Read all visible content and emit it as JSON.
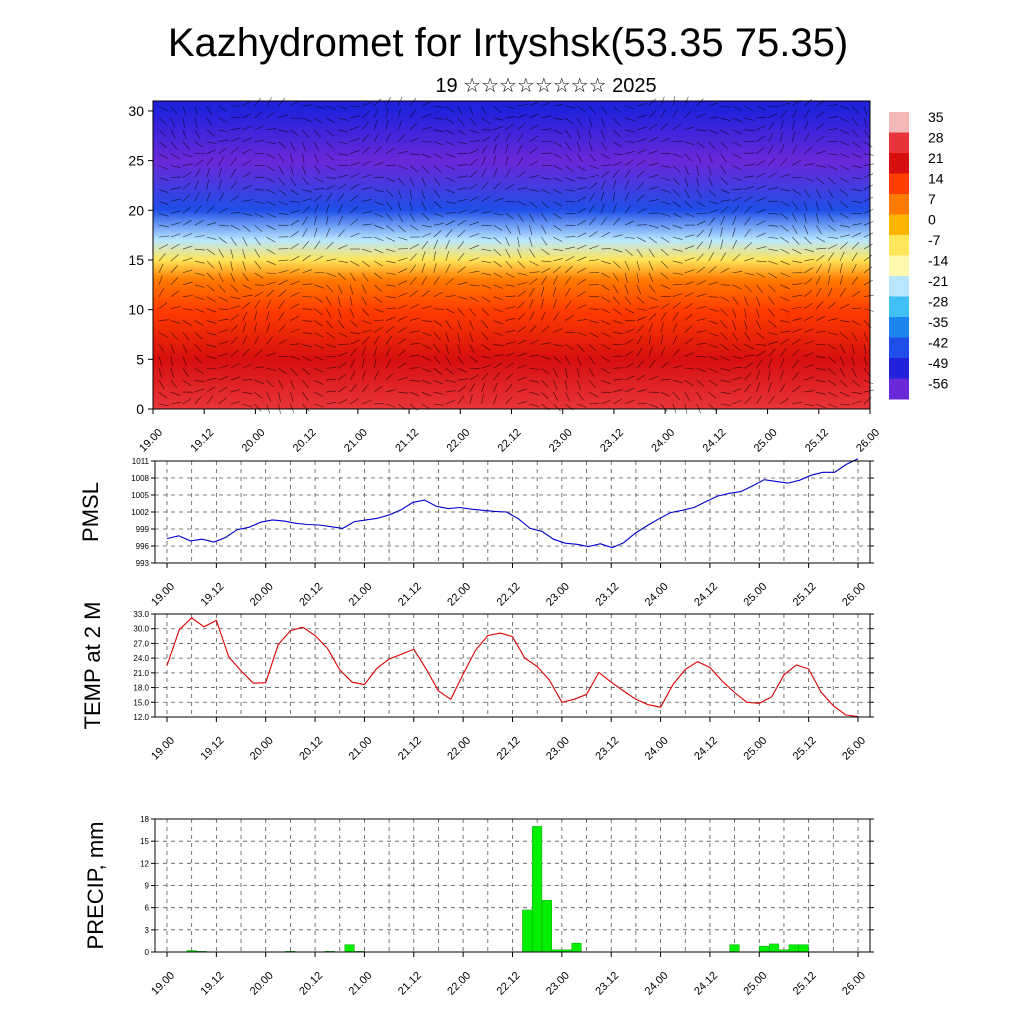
{
  "title": "Kazhydromet for Irtyshsk(53.35 75.35)",
  "subtitle": "19 ☆☆☆☆☆☆☆☆ 2025",
  "time_labels": [
    "19.00",
    "19.12",
    "20.00",
    "20.12",
    "21.00",
    "21.12",
    "22.00",
    "22.12",
    "23.00",
    "23.12",
    "24.00",
    "24.12",
    "25.00",
    "25.12",
    "26.00"
  ],
  "chart_data": [
    {
      "type": "heatmap",
      "ylim": [
        0,
        31
      ],
      "y_ticks": [
        0,
        5,
        10,
        15,
        20,
        25,
        30
      ],
      "colorbar_labels": [
        "35",
        "28",
        "21",
        "14",
        "7",
        "0",
        "-7",
        "-14",
        "-21",
        "-28",
        "-35",
        "-42",
        "-49",
        "-56"
      ],
      "colorbar_colors": [
        "#f3b7b7",
        "#e8343a",
        "#d70f0f",
        "#ff3d00",
        "#ff7a00",
        "#ffb400",
        "#ffe55a",
        "#fff9b0",
        "#b8e6ff",
        "#3fc0f5",
        "#1c86ee",
        "#1f4fe8",
        "#2222dd",
        "#6a28d8"
      ],
      "vertical_profile_temperature": [
        {
          "level": 0,
          "value": 28
        },
        {
          "level": 5,
          "value": 23
        },
        {
          "level": 10,
          "value": 14
        },
        {
          "level": 13,
          "value": 5
        },
        {
          "level": 15,
          "value": -10
        },
        {
          "level": 17,
          "value": -22
        },
        {
          "level": 20,
          "value": -40
        },
        {
          "level": 25,
          "value": -55
        },
        {
          "level": 30,
          "value": -52
        }
      ]
    },
    {
      "type": "line",
      "ylabel": "PMSL",
      "ylim": [
        993,
        1011
      ],
      "y_ticks": [
        "1011",
        "1008",
        "1005",
        "1002",
        "999",
        "996",
        "993"
      ],
      "color": "#0000cc",
      "values": [
        997.3,
        997.8,
        996.9,
        997.2,
        996.7,
        997.5,
        998.9,
        999.3,
        1000.2,
        1000.6,
        1000.4,
        1000.0,
        999.8,
        999.7,
        999.4,
        999.1,
        1000.3,
        1000.6,
        1000.9,
        1001.5,
        1002.4,
        1003.7,
        1004.1,
        1003.0,
        1002.6,
        1002.8,
        1002.5,
        1002.3,
        1002.1,
        1002.0,
        1000.8,
        999.1,
        998.6,
        997.2,
        996.5,
        996.3,
        995.9,
        996.4,
        995.7,
        996.6,
        998.3,
        999.6,
        1000.8,
        1001.9,
        1002.3,
        1002.8,
        1003.8,
        1004.8,
        1005.3,
        1005.6,
        1006.6,
        1007.7,
        1007.4,
        1007.1,
        1007.6,
        1008.5,
        1009.0,
        1009.0,
        1010.4,
        1011.4
      ]
    },
    {
      "type": "line",
      "ylabel": "TEMP at 2 M",
      "ylim": [
        12,
        33
      ],
      "y_ticks": [
        "33.0",
        "30.0",
        "27.0",
        "24.0",
        "21.0",
        "18.0",
        "15.0",
        "12.0"
      ],
      "color": "#dd0000",
      "values": [
        22.5,
        29.8,
        32.2,
        30.4,
        31.7,
        24.3,
        21.4,
        18.9,
        19.0,
        26.7,
        29.6,
        30.3,
        28.6,
        26.0,
        21.6,
        19.1,
        18.6,
        21.9,
        23.8,
        24.8,
        25.8,
        21.8,
        17.3,
        15.6,
        20.7,
        25.6,
        28.6,
        29.1,
        28.4,
        24.0,
        22.3,
        19.5,
        15.0,
        15.6,
        16.6,
        21.1,
        19.1,
        17.3,
        15.6,
        14.5,
        14.0,
        18.6,
        21.7,
        23.3,
        22.1,
        19.3,
        17.0,
        15.0,
        14.8,
        16.1,
        20.6,
        22.6,
        21.8,
        17.1,
        14.3,
        12.4,
        12.1
      ]
    },
    {
      "type": "bar",
      "ylabel": "PRECIP, mm",
      "ylim": [
        0,
        18
      ],
      "y_ticks": [
        "18",
        "15",
        "12",
        "9",
        "6",
        "3",
        "0"
      ],
      "color": "#00ee00",
      "values": [
        0,
        0,
        0.2,
        0.1,
        0,
        0,
        0,
        0,
        0,
        0,
        0,
        0,
        0.1,
        0,
        0,
        0,
        0.1,
        0,
        1.0,
        0.1,
        0,
        0,
        0,
        0,
        0,
        0,
        0,
        0,
        0,
        0,
        0,
        0,
        0,
        0,
        0,
        0,
        5.7,
        17.0,
        7.0,
        0.3,
        0.3,
        1.2,
        0,
        0,
        0,
        0,
        0,
        0,
        0,
        0,
        0,
        0,
        0,
        0,
        0,
        0,
        0,
        1.0,
        0,
        0,
        0.8,
        1.1,
        0.3,
        1.0,
        1.0,
        0,
        0,
        0,
        0,
        0
      ]
    }
  ]
}
